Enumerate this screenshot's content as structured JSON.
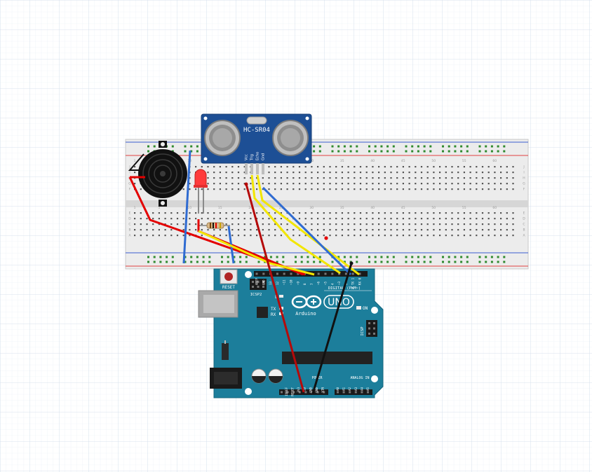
{
  "sensor": {
    "model": "HC-SR04",
    "pins": [
      "Vcc",
      "Trig",
      "Echo",
      "Gnd"
    ]
  },
  "arduino": {
    "brand": "Arduino",
    "model": "UNO",
    "reset_label": "RESET",
    "icsp2_label": "ICSP2",
    "icsp_label": "ICSP",
    "on_label": "ON",
    "tx_label": "TX",
    "rx_label": "RX",
    "l_label": "L",
    "digital_label": "DIGITAL (PWM~)",
    "power_label": "POWER",
    "analog_label": "ANALOG IN",
    "digital_pins": [
      "AREF",
      "GND",
      "13",
      "12",
      "~11",
      "~10",
      "~9",
      "8",
      "7",
      "~6",
      "~5",
      "4",
      "~3",
      "2",
      "TX 1",
      "RX 0"
    ],
    "power_pins": [
      "IOREF",
      "RESET",
      "3V3",
      "5V",
      "GND",
      "GND",
      "VIN"
    ],
    "analog_pins": [
      "A0",
      "A1",
      "A2",
      "A3",
      "A4",
      "A5"
    ]
  },
  "breadboard": {
    "column_numbers": [
      "1",
      "5",
      "10",
      "15",
      "20",
      "25",
      "30",
      "35",
      "40",
      "45",
      "50",
      "55",
      "60"
    ],
    "row_letters": [
      "J",
      "I",
      "H",
      "G",
      "F",
      "E",
      "D",
      "C",
      "B",
      "A"
    ]
  },
  "colors": {
    "background": "#ffffff",
    "grid": "#dde6f2",
    "board_blue": "#1c7e9b",
    "sensor_blue": "#1d4f95",
    "wire_red": "#e30000",
    "wire_darkred": "#b50a0a",
    "wire_blue": "#2f6bd1",
    "wire_yellow": "#f2e600",
    "wire_black": "#111111",
    "led_red": "#ff3b3b"
  }
}
